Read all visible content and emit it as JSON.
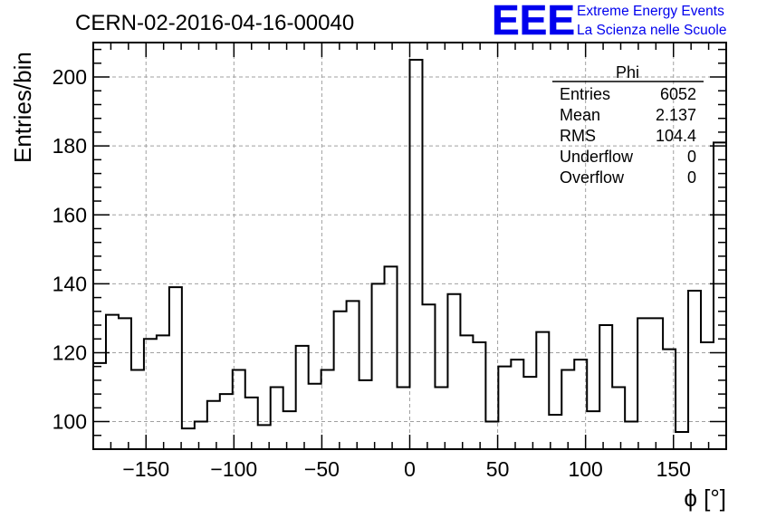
{
  "chart_data": {
    "type": "histogram-step",
    "title": "CERN-02-2016-04-16-00040",
    "xlabel": "ϕ [°]",
    "ylabel": "Entries/bin",
    "xlim": [
      -180,
      180
    ],
    "ylim": [
      92,
      210
    ],
    "bin_width": 7.2,
    "xticks": [
      -150,
      -100,
      -50,
      0,
      50,
      100,
      150
    ],
    "xtick_labels": [
      "−150",
      "−100",
      "−50",
      "0",
      "50",
      "100",
      "150"
    ],
    "yticks": [
      100,
      120,
      140,
      160,
      180,
      200
    ],
    "ytick_labels": [
      "100",
      "120",
      "140",
      "160",
      "180",
      "200"
    ],
    "grid": true,
    "line_color": "#000000",
    "values": [
      117,
      131,
      130,
      115,
      124,
      125,
      139,
      98,
      100,
      106,
      108,
      115,
      107,
      99,
      110,
      103,
      122,
      111,
      115,
      132,
      135,
      112,
      140,
      145,
      110,
      205,
      134,
      110,
      137,
      125,
      123,
      100,
      116,
      118,
      113,
      126,
      102,
      115,
      118,
      103,
      128,
      110,
      100,
      130,
      130,
      121,
      97,
      138,
      123,
      181
    ]
  },
  "stats_box": {
    "name": "Phi",
    "rows": [
      {
        "label": "Entries",
        "value": "6052"
      },
      {
        "label": "Mean",
        "value": "2.137"
      },
      {
        "label": "RMS",
        "value": "104.4"
      },
      {
        "label": "Underflow",
        "value": "0"
      },
      {
        "label": "Overflow",
        "value": "0"
      }
    ]
  },
  "logo": {
    "mark": "EEE",
    "line1": "Extreme Energy Events",
    "line2": "La Scienza nelle Scuole",
    "color": "#0000ee"
  }
}
